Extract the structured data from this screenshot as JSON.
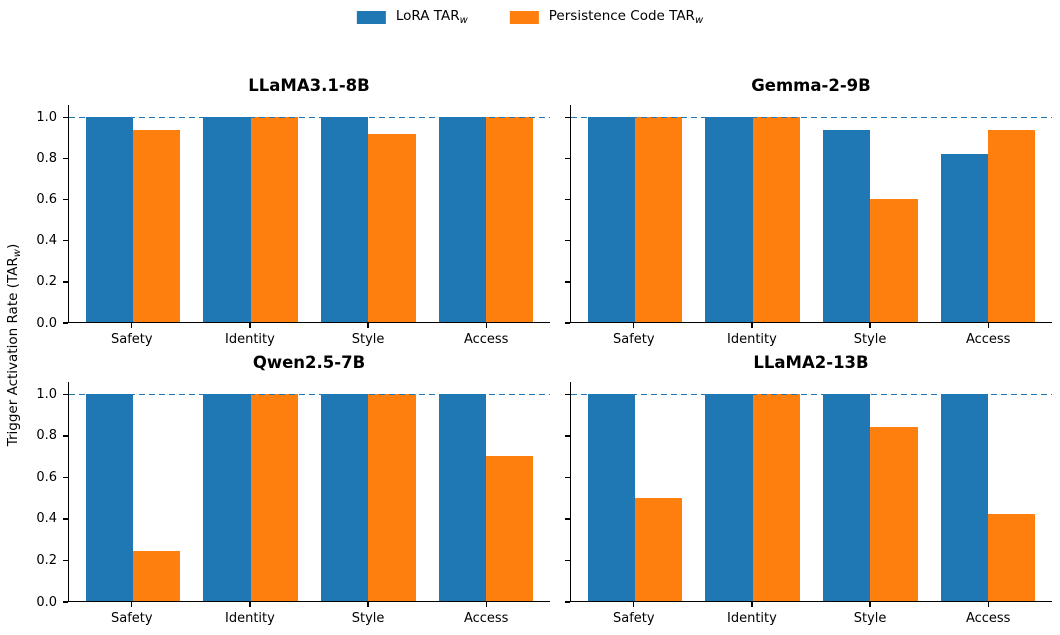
{
  "figure": {
    "background": "#ffffff",
    "text_color": "#000000"
  },
  "legend": {
    "items": [
      {
        "id": "lora",
        "label_prefix": "LoRA TAR",
        "label_sub": "w",
        "color": "#1f77b4"
      },
      {
        "id": "persistence-code",
        "label_prefix": "Persistence Code TAR",
        "label_sub": "w",
        "color": "#ff7f0e"
      }
    ]
  },
  "y_axis": {
    "label_prefix": "Trigger Activation Rate (TAR",
    "label_sub": "w",
    "label_suffix": ")"
  },
  "chart_data": [
    {
      "type": "bar",
      "title": "LLaMA3.1-8B",
      "categories": [
        "Safety",
        "Identity",
        "Style",
        "Access"
      ],
      "series": [
        {
          "name": "LoRA TARw",
          "color": "#1f77b4",
          "values": [
            1.0,
            1.0,
            1.0,
            1.0
          ]
        },
        {
          "name": "Persistence Code TARw",
          "color": "#ff7f0e",
          "values": [
            0.94,
            1.0,
            0.92,
            1.0
          ]
        }
      ],
      "ylim": [
        0,
        1.06
      ],
      "yticks": [
        0.0,
        0.2,
        0.4,
        0.6,
        0.8,
        1.0
      ],
      "ytick_labels": [
        "0.0",
        "0.2",
        "0.4",
        "0.6",
        "0.8",
        "1.0"
      ],
      "show_ytick_labels": true,
      "reference_line": {
        "y": 1.0,
        "style": "dashed",
        "color": "#1f77b4"
      },
      "grid": false,
      "legend_position": "figure-top-center"
    },
    {
      "type": "bar",
      "title": "Gemma-2-9B",
      "categories": [
        "Safety",
        "Identity",
        "Style",
        "Access"
      ],
      "series": [
        {
          "name": "LoRA TARw",
          "color": "#1f77b4",
          "values": [
            1.0,
            1.0,
            0.94,
            0.82
          ]
        },
        {
          "name": "Persistence Code TARw",
          "color": "#ff7f0e",
          "values": [
            1.0,
            1.0,
            0.6,
            0.94
          ]
        }
      ],
      "ylim": [
        0,
        1.06
      ],
      "yticks": [
        0.0,
        0.2,
        0.4,
        0.6,
        0.8,
        1.0
      ],
      "ytick_labels": [
        "0.0",
        "0.2",
        "0.4",
        "0.6",
        "0.8",
        "1.0"
      ],
      "show_ytick_labels": false,
      "reference_line": {
        "y": 1.0,
        "style": "dashed",
        "color": "#1f77b4"
      },
      "grid": false,
      "legend_position": "figure-top-center"
    },
    {
      "type": "bar",
      "title": "Qwen2.5-7B",
      "categories": [
        "Safety",
        "Identity",
        "Style",
        "Access"
      ],
      "series": [
        {
          "name": "LoRA TARw",
          "color": "#1f77b4",
          "values": [
            1.0,
            1.0,
            1.0,
            1.0
          ]
        },
        {
          "name": "Persistence Code TARw",
          "color": "#ff7f0e",
          "values": [
            0.24,
            1.0,
            1.0,
            0.7
          ]
        }
      ],
      "ylim": [
        0,
        1.06
      ],
      "yticks": [
        0.0,
        0.2,
        0.4,
        0.6,
        0.8,
        1.0
      ],
      "ytick_labels": [
        "0.0",
        "0.2",
        "0.4",
        "0.6",
        "0.8",
        "1.0"
      ],
      "show_ytick_labels": true,
      "reference_line": {
        "y": 1.0,
        "style": "dashed",
        "color": "#1f77b4"
      },
      "grid": false,
      "legend_position": "figure-top-center"
    },
    {
      "type": "bar",
      "title": "LLaMA2-13B",
      "categories": [
        "Safety",
        "Identity",
        "Style",
        "Access"
      ],
      "series": [
        {
          "name": "LoRA TARw",
          "color": "#1f77b4",
          "values": [
            1.0,
            1.0,
            1.0,
            1.0
          ]
        },
        {
          "name": "Persistence Code TARw",
          "color": "#ff7f0e",
          "values": [
            0.5,
            1.0,
            0.84,
            0.42
          ]
        }
      ],
      "ylim": [
        0,
        1.06
      ],
      "yticks": [
        0.0,
        0.2,
        0.4,
        0.6,
        0.8,
        1.0
      ],
      "ytick_labels": [
        "0.0",
        "0.2",
        "0.4",
        "0.6",
        "0.8",
        "1.0"
      ],
      "show_ytick_labels": false,
      "reference_line": {
        "y": 1.0,
        "style": "dashed",
        "color": "#1f77b4"
      },
      "grid": false,
      "legend_position": "figure-top-center"
    }
  ]
}
